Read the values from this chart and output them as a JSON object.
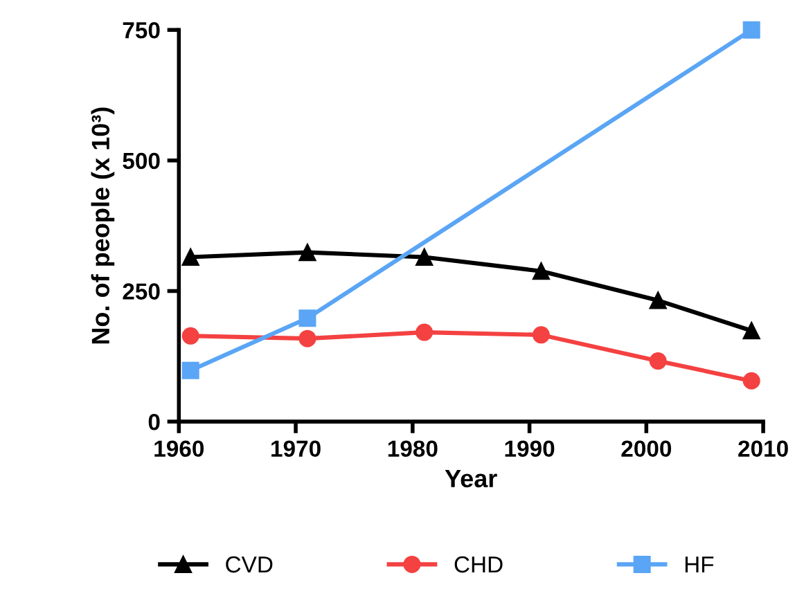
{
  "chart_data": {
    "type": "line",
    "xlabel": "Year",
    "ylabel": "No. of people (x 10³)",
    "x": [
      1961,
      1971,
      1981,
      1991,
      2001,
      2009
    ],
    "series": [
      {
        "name": "CVD",
        "color": "#000000",
        "marker": "triangle",
        "values": [
          315,
          324,
          315,
          288,
          232,
          174
        ]
      },
      {
        "name": "CHD",
        "color": "#f44141",
        "marker": "circle",
        "values": [
          164,
          159,
          171,
          166,
          116,
          78
        ]
      },
      {
        "name": "HF",
        "color": "#5aa5f5",
        "marker": "square",
        "x": [
          1961,
          1971,
          2009
        ],
        "values": [
          98,
          198,
          750
        ]
      }
    ],
    "xlim": [
      1960,
      2010
    ],
    "xticks": [
      1960,
      1970,
      1980,
      1990,
      2000,
      2010
    ],
    "ylim": [
      0,
      750
    ],
    "yticks": [
      0,
      250,
      500,
      750
    ],
    "grid": false,
    "legend": "bottom"
  }
}
